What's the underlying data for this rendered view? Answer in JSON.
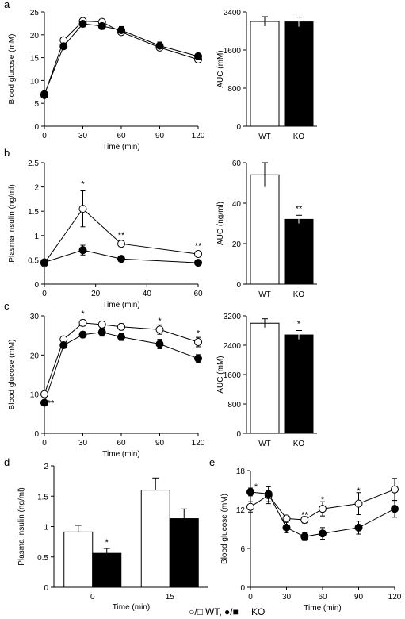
{
  "legend": {
    "wt_symbols": "○/□",
    "wt_label": "WT,",
    "ko_symbols": "●/■",
    "ko_label": "KO"
  },
  "colors": {
    "wt_fill": "#ffffff",
    "ko_fill": "#000000",
    "stroke": "#000000"
  },
  "chart_data": [
    {
      "id": "a-line",
      "panel": "a",
      "type": "line",
      "ylabel": "Blood glucose (mM)",
      "xlabel": "Time (min)",
      "xlim": [
        0,
        120
      ],
      "ylim": [
        0,
        25
      ],
      "xticks": [
        0,
        30,
        60,
        90,
        120
      ],
      "yticks": [
        0,
        5,
        10,
        15,
        20,
        25
      ],
      "series": [
        {
          "group": "WT",
          "x": [
            0,
            15,
            30,
            45,
            60,
            90,
            120
          ],
          "y": [
            6.8,
            18.8,
            23.0,
            22.8,
            20.6,
            17.2,
            14.6
          ],
          "err": [
            0.3,
            0.5,
            0.6,
            0.6,
            0.6,
            0.6,
            0.5
          ]
        },
        {
          "group": "KO",
          "x": [
            0,
            15,
            30,
            45,
            60,
            90,
            120
          ],
          "y": [
            7.0,
            17.5,
            22.4,
            21.9,
            21.0,
            17.6,
            15.3
          ],
          "err": [
            0.3,
            0.6,
            0.7,
            0.7,
            0.8,
            0.8,
            0.6
          ]
        }
      ],
      "annotations": []
    },
    {
      "id": "a-bar",
      "panel": "",
      "type": "bar",
      "ylabel": "AUC (mM)",
      "categories": [
        "WT",
        "KO"
      ],
      "ylim": [
        0,
        2400
      ],
      "yticks": [
        0,
        800,
        1600,
        2400
      ],
      "values": [
        2200,
        2190
      ],
      "err": [
        100,
        100
      ],
      "annotations": [
        "",
        ""
      ]
    },
    {
      "id": "b-line",
      "panel": "b",
      "type": "line",
      "ylabel": "Plasma insulin (ng/ml)",
      "xlabel": "Time (min)",
      "xlim": [
        0,
        60
      ],
      "ylim": [
        0,
        2.5
      ],
      "xticks": [
        0,
        20,
        40,
        60
      ],
      "yticks": [
        0,
        0.5,
        1,
        1.5,
        2,
        2.5
      ],
      "series": [
        {
          "group": "WT",
          "x": [
            0,
            15,
            30,
            60
          ],
          "y": [
            0.43,
            1.55,
            0.83,
            0.62
          ],
          "err": [
            0.04,
            0.37,
            0.05,
            0.04
          ]
        },
        {
          "group": "KO",
          "x": [
            0,
            15,
            30,
            60
          ],
          "y": [
            0.45,
            0.7,
            0.52,
            0.44
          ],
          "err": [
            0.03,
            0.1,
            0.04,
            0.03
          ]
        }
      ],
      "annotations": [
        {
          "x": 15,
          "y": 2.05,
          "text": "*"
        },
        {
          "x": 30,
          "y": 1.0,
          "text": "**"
        },
        {
          "x": 60,
          "y": 0.78,
          "text": "**"
        }
      ]
    },
    {
      "id": "b-bar",
      "panel": "",
      "type": "bar",
      "ylabel": "AUC (ng/ml)",
      "categories": [
        "WT",
        "KO"
      ],
      "ylim": [
        0,
        60
      ],
      "yticks": [
        0,
        20,
        40,
        60
      ],
      "values": [
        54,
        32
      ],
      "err": [
        6,
        2
      ],
      "annotations": [
        "",
        "**"
      ]
    },
    {
      "id": "c-line",
      "panel": "c",
      "type": "line",
      "ylabel": "Blood glucose (mM)",
      "xlabel": "Time (min)",
      "xlim": [
        0,
        120
      ],
      "ylim": [
        0,
        30
      ],
      "xticks": [
        0,
        30,
        60,
        90,
        120
      ],
      "yticks": [
        0,
        10,
        20,
        30
      ],
      "series": [
        {
          "group": "WT",
          "x": [
            0,
            15,
            30,
            45,
            60,
            90,
            120
          ],
          "y": [
            10.0,
            24.0,
            28.2,
            27.8,
            27.2,
            26.5,
            23.3
          ],
          "err": [
            0.5,
            0.7,
            0.8,
            0.8,
            0.8,
            1.2,
            1.2
          ]
        },
        {
          "group": "KO",
          "x": [
            0,
            15,
            30,
            45,
            60,
            90,
            120
          ],
          "y": [
            7.8,
            22.5,
            25.2,
            25.8,
            24.6,
            22.8,
            19.1
          ],
          "err": [
            0.4,
            0.8,
            0.8,
            1.0,
            0.9,
            1.2,
            1.0
          ]
        }
      ],
      "annotations": [
        {
          "x": 0,
          "y": 7.6,
          "text": "**",
          "dx": 8
        },
        {
          "x": 30,
          "y": 30.4,
          "text": "*"
        },
        {
          "x": 90,
          "y": 28.6,
          "text": "*"
        },
        {
          "x": 120,
          "y": 25.4,
          "text": "*"
        }
      ]
    },
    {
      "id": "c-bar",
      "panel": "",
      "type": "bar",
      "ylabel": "AUC (mM)",
      "categories": [
        "WT",
        "KO"
      ],
      "ylim": [
        0,
        3200
      ],
      "yticks": [
        0,
        800,
        1600,
        2400,
        3200
      ],
      "values": [
        3000,
        2680
      ],
      "err": [
        120,
        120
      ],
      "annotations": [
        "",
        "*"
      ]
    },
    {
      "id": "d-bar",
      "panel": "d",
      "type": "bar",
      "ylabel": "Plasma insulin (ng/ml)",
      "xlabel": "Time (min)",
      "categories": [
        "0",
        "15"
      ],
      "ylim": [
        0,
        2
      ],
      "yticks": [
        0,
        0.5,
        1,
        1.5,
        2
      ],
      "series": [
        {
          "group": "WT",
          "values": [
            0.91,
            1.6
          ],
          "err": [
            0.11,
            0.2
          ]
        },
        {
          "group": "KO",
          "values": [
            0.56,
            1.13
          ],
          "err": [
            0.08,
            0.16
          ]
        }
      ],
      "annotations": [
        {
          "category": 0,
          "group": "KO",
          "text": "*"
        }
      ]
    },
    {
      "id": "e-line",
      "panel": "e",
      "type": "line",
      "ylabel": "Blood glucose (mM)",
      "xlabel": "Time (min)",
      "xlim": [
        0,
        120
      ],
      "ylim": [
        0,
        18
      ],
      "xticks": [
        0,
        30,
        60,
        90,
        120
      ],
      "yticks": [
        0,
        6,
        12,
        18
      ],
      "series": [
        {
          "group": "WT",
          "x": [
            0,
            15,
            30,
            45,
            60,
            90,
            120
          ],
          "y": [
            12.4,
            14.2,
            10.6,
            10.4,
            12.1,
            12.9,
            15.1
          ],
          "err": [
            0.8,
            1.3,
            0.5,
            0.5,
            1.1,
            1.7,
            1.7
          ]
        },
        {
          "group": "KO",
          "x": [
            0,
            15,
            30,
            45,
            60,
            90,
            120
          ],
          "y": [
            14.7,
            14.4,
            9.2,
            7.8,
            8.3,
            9.2,
            12.1
          ],
          "err": [
            0.6,
            1.2,
            0.8,
            0.6,
            0.9,
            1.0,
            1.3
          ]
        }
      ],
      "annotations": [
        {
          "x": 0,
          "y": 15.4,
          "text": "*",
          "dx": 7
        },
        {
          "x": 45,
          "y": 11.1,
          "text": "**"
        },
        {
          "x": 60,
          "y": 13.5,
          "text": "*"
        },
        {
          "x": 90,
          "y": 14.8,
          "text": "*"
        }
      ]
    }
  ]
}
